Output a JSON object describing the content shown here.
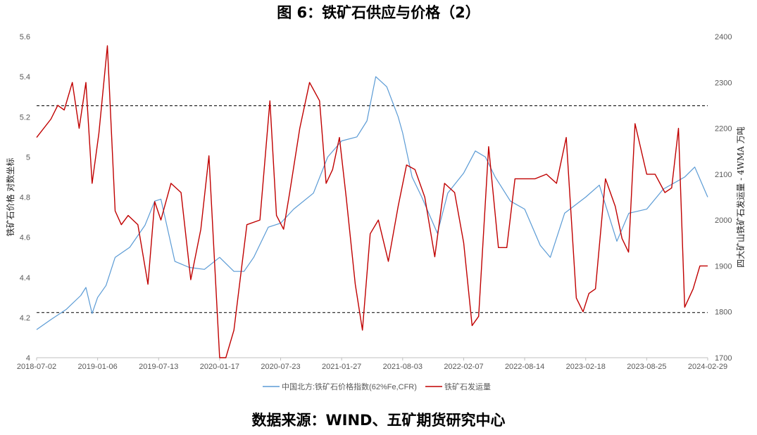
{
  "title": "图 6：铁矿石供应与价格（2）",
  "source": "数据来源：WIND、五矿期货研究中心",
  "chart_data": {
    "type": "line",
    "xlabel": "",
    "x_ticks": [
      "2018-07-02",
      "2019-01-06",
      "2019-07-13",
      "2020-01-17",
      "2020-07-23",
      "2021-01-27",
      "2021-08-03",
      "2022-02-07",
      "2022-08-14",
      "2023-02-18",
      "2023-08-25",
      "2024-02-29"
    ],
    "y_left": {
      "label": "铁矿石价格 对数坐标",
      "ticks": [
        "4",
        "4.2",
        "4.4",
        "4.6",
        "4.8",
        "5",
        "5.2",
        "5.4",
        "5.6"
      ],
      "lim": [
        4,
        5.6
      ]
    },
    "y_right": {
      "label": "四大矿山铁矿石发运量 - 4WMA 万吨",
      "ticks": [
        "1700",
        "1800",
        "1900",
        "2000",
        "2100",
        "2200",
        "2300",
        "2400"
      ],
      "lim": [
        1700,
        2400
      ]
    },
    "reference_lines": [
      {
        "axis": "left",
        "value": 5.255,
        "style": "dashed"
      },
      {
        "axis": "left",
        "value": 4.225,
        "style": "dashed"
      }
    ],
    "series": [
      {
        "name": "中国北方:铁矿石价格指数(62%Fe,CFR)",
        "axis": "left",
        "color": "#5B9BD5",
        "x": [
          "2018-07-02",
          "2018-08-15",
          "2018-10-01",
          "2018-11-15",
          "2018-12-01",
          "2018-12-20",
          "2019-01-06",
          "2019-02-01",
          "2019-03-01",
          "2019-04-15",
          "2019-06-01",
          "2019-07-01",
          "2019-07-20",
          "2019-09-01",
          "2019-10-15",
          "2019-12-01",
          "2020-01-17",
          "2020-03-01",
          "2020-04-01",
          "2020-05-01",
          "2020-06-15",
          "2020-07-23",
          "2020-09-01",
          "2020-11-01",
          "2020-12-15",
          "2021-01-27",
          "2021-03-15",
          "2021-04-15",
          "2021-05-12",
          "2021-06-15",
          "2021-07-20",
          "2021-08-03",
          "2021-09-01",
          "2021-10-01",
          "2021-11-18",
          "2021-12-20",
          "2022-02-07",
          "2022-03-15",
          "2022-04-15",
          "2022-05-15",
          "2022-07-01",
          "2022-08-14",
          "2022-10-01",
          "2022-11-01",
          "2022-12-15",
          "2023-02-18",
          "2023-04-01",
          "2023-05-25",
          "2023-07-01",
          "2023-08-25",
          "2023-10-15",
          "2023-12-20",
          "2024-01-20",
          "2024-02-29"
        ],
        "values": [
          4.14,
          4.19,
          4.24,
          4.31,
          4.35,
          4.22,
          4.3,
          4.36,
          4.5,
          4.55,
          4.66,
          4.78,
          4.79,
          4.48,
          4.45,
          4.44,
          4.5,
          4.43,
          4.43,
          4.5,
          4.65,
          4.67,
          4.74,
          4.82,
          5.0,
          5.08,
          5.1,
          5.18,
          5.4,
          5.35,
          5.2,
          5.12,
          4.9,
          4.8,
          4.62,
          4.82,
          4.92,
          5.03,
          5.0,
          4.9,
          4.78,
          4.74,
          4.56,
          4.5,
          4.72,
          4.8,
          4.86,
          4.58,
          4.72,
          4.74,
          4.84,
          4.9,
          4.95,
          4.8
        ]
      },
      {
        "name": "铁矿石发运量",
        "axis": "right",
        "color": "#C00000",
        "x": [
          "2018-07-02",
          "2018-08-15",
          "2018-09-05",
          "2018-09-25",
          "2018-10-20",
          "2018-11-10",
          "2018-12-01",
          "2018-12-20",
          "2019-01-10",
          "2019-02-05",
          "2019-03-01",
          "2019-03-20",
          "2019-04-10",
          "2019-05-10",
          "2019-06-10",
          "2019-07-01",
          "2019-07-20",
          "2019-08-20",
          "2019-09-20",
          "2019-10-20",
          "2019-11-20",
          "2019-12-15",
          "2020-01-17",
          "2020-02-05",
          "2020-03-01",
          "2020-04-10",
          "2020-05-20",
          "2020-06-20",
          "2020-07-10",
          "2020-08-01",
          "2020-08-20",
          "2020-09-20",
          "2020-10-20",
          "2020-11-20",
          "2020-12-10",
          "2020-12-30",
          "2021-01-20",
          "2021-02-10",
          "2021-03-10",
          "2021-04-01",
          "2021-04-25",
          "2021-05-20",
          "2021-06-20",
          "2021-07-20",
          "2021-08-15",
          "2021-09-10",
          "2021-10-10",
          "2021-11-10",
          "2021-12-10",
          "2022-01-10",
          "2022-02-07",
          "2022-03-05",
          "2022-03-25",
          "2022-04-25",
          "2022-05-25",
          "2022-06-20",
          "2022-07-15",
          "2022-08-14",
          "2022-09-15",
          "2022-10-20",
          "2022-11-20",
          "2022-12-20",
          "2023-01-20",
          "2023-02-10",
          "2023-02-28",
          "2023-03-20",
          "2023-04-20",
          "2023-05-20",
          "2023-06-10",
          "2023-06-30",
          "2023-07-20",
          "2023-08-25",
          "2023-09-20",
          "2023-10-20",
          "2023-11-10",
          "2023-12-01",
          "2023-12-20",
          "2024-01-15",
          "2024-02-05",
          "2024-02-29"
        ],
        "values": [
          2180,
          2220,
          2250,
          2240,
          2300,
          2200,
          2300,
          2080,
          2190,
          2380,
          2020,
          1990,
          2010,
          1990,
          1860,
          2040,
          2000,
          2080,
          2060,
          1870,
          1980,
          2140,
          1680,
          1700,
          1760,
          1990,
          2000,
          2260,
          2010,
          1980,
          2060,
          2200,
          2300,
          2260,
          2080,
          2110,
          2180,
          2050,
          1860,
          1760,
          1970,
          2000,
          1910,
          2030,
          2120,
          2110,
          2050,
          1920,
          2080,
          2060,
          1950,
          1770,
          1790,
          2160,
          1940,
          1940,
          2090,
          2090,
          2090,
          2100,
          2080,
          2180,
          1830,
          1800,
          1840,
          1850,
          2090,
          2030,
          1960,
          1930,
          2210,
          2100,
          2100,
          2060,
          2070,
          2200,
          1810,
          1850,
          1900,
          1900
        ]
      }
    ],
    "legend_position": "bottom"
  }
}
